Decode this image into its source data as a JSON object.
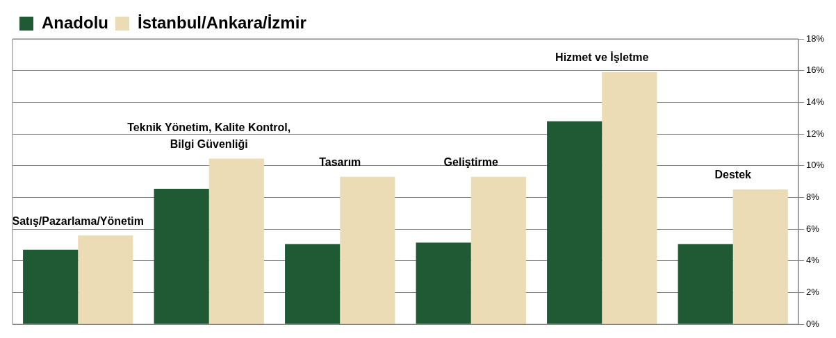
{
  "chart_data": {
    "type": "bar",
    "categories": [
      "Satış/Pazarlama/Yönetim",
      "Teknik Yönetim, Kalite Kontrol, Bilgi Güvenliği",
      "Tasarım",
      "Geliştirme",
      "Hizmet ve İşletme",
      "Destek"
    ],
    "series": [
      {
        "name": "Anadolu",
        "color": "#1f5a34",
        "values": [
          4.7,
          8.55,
          5.05,
          5.15,
          12.8,
          5.05
        ]
      },
      {
        "name": "İstanbul/Ankara/İzmir",
        "color": "#ecdcb6",
        "values": [
          5.6,
          10.45,
          9.3,
          9.3,
          15.9,
          8.5
        ]
      }
    ],
    "ylim": [
      0,
      18
    ],
    "yticks": [
      {
        "value": 0,
        "label": "0%"
      },
      {
        "value": 2,
        "label": "2%"
      },
      {
        "value": 4,
        "label": "4%"
      },
      {
        "value": 6,
        "label": "6%"
      },
      {
        "value": 8,
        "label": "8%"
      },
      {
        "value": 10,
        "label": "10%"
      },
      {
        "value": 12,
        "label": "12%"
      },
      {
        "value": 14,
        "label": "14%"
      },
      {
        "value": 16,
        "label": "16%"
      },
      {
        "value": 18,
        "label": "18%"
      }
    ],
    "grid": "y",
    "legend": "top left"
  }
}
